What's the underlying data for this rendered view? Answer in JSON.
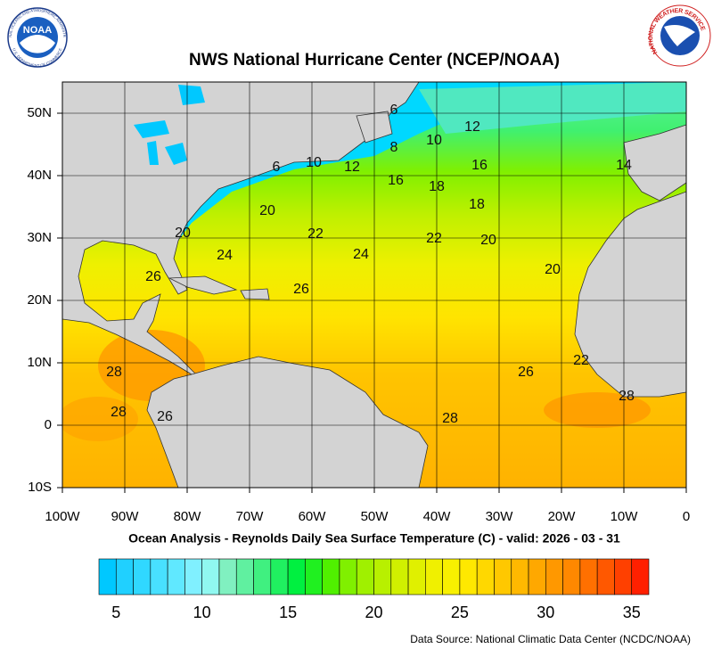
{
  "header": {
    "title": "NWS National Hurricane Center (NCEP/NOAA)",
    "noaa_logo": {
      "text": "NOAA",
      "ring_top": "NATIONAL OCEANIC AND ATMOSPHERIC ADMINISTRATION",
      "ring_bottom": "U.S. DEPARTMENT OF COMMERCE"
    },
    "nws_logo": {
      "ring": "NATIONAL WEATHER SERVICE"
    }
  },
  "map": {
    "lon_range": [
      -100,
      0
    ],
    "lat_range": [
      -10,
      55
    ],
    "lon_ticks": [
      {
        "value": -100,
        "label": "100W"
      },
      {
        "value": -90,
        "label": "90W"
      },
      {
        "value": -80,
        "label": "80W"
      },
      {
        "value": -70,
        "label": "70W"
      },
      {
        "value": -60,
        "label": "60W"
      },
      {
        "value": -50,
        "label": "50W"
      },
      {
        "value": -40,
        "label": "40W"
      },
      {
        "value": -30,
        "label": "30W"
      },
      {
        "value": -20,
        "label": "20W"
      },
      {
        "value": -10,
        "label": "10W"
      },
      0
    ],
    "lat_ticks": [
      {
        "value": 50,
        "label": "50N"
      },
      {
        "value": 40,
        "label": "40N"
      },
      {
        "value": 30,
        "label": "30N"
      },
      {
        "value": 20,
        "label": "20N"
      },
      {
        "value": 10,
        "label": "10N"
      },
      0,
      {
        "value": -10,
        "label": "10S"
      }
    ],
    "contour_labels": [
      6,
      12,
      8,
      10,
      16,
      14,
      6,
      10,
      12,
      16,
      18,
      18,
      20,
      20,
      22,
      22,
      20,
      24,
      24,
      20,
      26,
      26,
      28,
      26,
      22,
      28,
      28,
      26,
      28
    ],
    "caption": "Ocean Analysis - Reynolds Daily Sea Surface Temperature (C) - valid: 2026 - 03 - 31"
  },
  "colorbar": {
    "range": [
      4,
      36
    ],
    "ticks": [
      5,
      10,
      15,
      20,
      25,
      30,
      35
    ],
    "colors": [
      "#00c8ff",
      "#20d0ff",
      "#30d8ff",
      "#48e0ff",
      "#60e8ff",
      "#80f0ff",
      "#90f8f0",
      "#80f0c0",
      "#60f0a0",
      "#40f080",
      "#20f060",
      "#00f040",
      "#20f020",
      "#50f000",
      "#80f000",
      "#a0f000",
      "#b8f000",
      "#d0f000",
      "#e0f000",
      "#f0f000",
      "#f8f000",
      "#ffe800",
      "#ffd800",
      "#ffc800",
      "#ffb800",
      "#ffa800",
      "#ff9800",
      "#ff8800",
      "#ff7000",
      "#ff5800",
      "#ff4000",
      "#ff2000"
    ]
  },
  "footer": {
    "source": "Data Source: National Climatic Data Center (NCDC/NOAA)"
  }
}
